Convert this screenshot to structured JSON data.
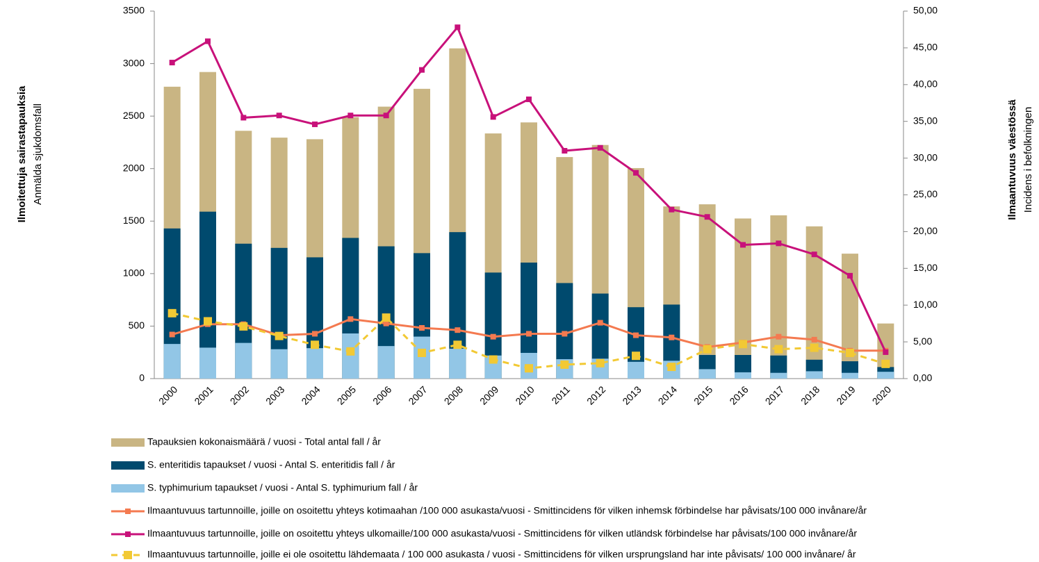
{
  "chart_data": {
    "type": "bar",
    "y_label": [
      "Ilmoitettuja sairastapauksia",
      "Anmälda sjukdomsfall"
    ],
    "y2_label": [
      "Ilmaantuvuus väestössä",
      "Incidens i befolkningen"
    ],
    "categories": [
      "2000",
      "2001",
      "2002",
      "2003",
      "2004",
      "2005",
      "2006",
      "2007",
      "2008",
      "2009",
      "2010",
      "2011",
      "2012",
      "2013",
      "2014",
      "2015",
      "2016",
      "2017",
      "2018",
      "2019",
      "2020"
    ],
    "ylim": [
      0,
      3500
    ],
    "yticks": [
      0,
      500,
      1000,
      1500,
      2000,
      2500,
      3000,
      3500
    ],
    "y2lim": [
      0,
      50
    ],
    "y2ticks": [
      {
        "value": 0,
        "label": "0,00"
      },
      {
        "value": 5,
        "label": "5,00"
      },
      {
        "value": 10,
        "label": "10,00"
      },
      {
        "value": 15,
        "label": "15,00"
      },
      {
        "value": 20,
        "label": "20,00"
      },
      {
        "value": 25,
        "label": "25,00"
      },
      {
        "value": 30,
        "label": "30,00"
      },
      {
        "value": 35,
        "label": "35,00"
      },
      {
        "value": 40,
        "label": "40,00"
      },
      {
        "value": 45,
        "label": "45,00"
      },
      {
        "value": 50,
        "label": "50,00"
      }
    ],
    "grid": false,
    "series": [
      {
        "name": "Tapauksien kokonaismäärä / vuosi - Total antal fall / år",
        "type": "bar",
        "color": "#c9b583",
        "values": [
          2780,
          2920,
          2360,
          2295,
          2280,
          2490,
          2590,
          2760,
          3145,
          2335,
          2440,
          2110,
          2225,
          2005,
          1640,
          1660,
          1525,
          1555,
          1450,
          1190,
          525
        ]
      },
      {
        "name": "S. enteritidis tapaukset / vuosi - Antal S. enteritidis fall / år",
        "type": "bar",
        "color": "#004a6e",
        "values": [
          1430,
          1590,
          1285,
          1245,
          1155,
          1340,
          1260,
          1195,
          1395,
          1010,
          1105,
          910,
          810,
          680,
          705,
          225,
          225,
          220,
          180,
          165,
          110
        ]
      },
      {
        "name": "S. typhimurium tapaukset / vuosi - Antal S. typhimurium fall / år",
        "type": "bar",
        "color": "#92c6e6",
        "values": [
          330,
          295,
          340,
          280,
          290,
          430,
          310,
          400,
          285,
          220,
          245,
          185,
          190,
          160,
          170,
          90,
          60,
          55,
          70,
          55,
          65
        ]
      },
      {
        "name": "Ilmaantuvuus tartunnoille, joille on osoitettu yhteys kotimaahan /100 000 asukasta/vuosi - Smittincidens för vilken inhemsk förbindelse har påvisats/100 000 invånare/år",
        "type": "line",
        "axis": "y2",
        "color": "#f47a50",
        "values": [
          6.0,
          7.4,
          7.4,
          5.9,
          6.1,
          8.1,
          7.5,
          6.9,
          6.6,
          5.7,
          6.1,
          6.1,
          7.6,
          5.9,
          5.6,
          4.3,
          4.9,
          5.7,
          5.3,
          3.8,
          3.8
        ]
      },
      {
        "name": "Ilmaantuvuus tartunnoille, joille on osoitettu yhteys ulkomaille/100 000 asukasta/vuosi - Smittincidens för vilken utländsk förbindelse har påvisats/100 000 invånare/år",
        "type": "line",
        "axis": "y2",
        "color": "#c8117a",
        "values": [
          43.0,
          45.9,
          35.5,
          35.8,
          34.6,
          35.8,
          35.8,
          42.0,
          47.8,
          35.6,
          38.0,
          31.0,
          31.4,
          28.0,
          23.0,
          22.0,
          18.2,
          18.4,
          16.9,
          14.0,
          3.6
        ]
      },
      {
        "name": "Ilmaantuvuus tartunnoille, joille ei ole osoitettu lähdemaata / 100 000 asukasta / vuosi - Smittincidens för vilken ursprungsland har inte påvisats/ 100 000 invånare/ år",
        "type": "line",
        "axis": "y2",
        "color": "#f2c934",
        "dashed": true,
        "values": [
          8.9,
          7.8,
          7.1,
          5.8,
          4.6,
          3.7,
          8.3,
          3.5,
          4.6,
          2.6,
          1.4,
          1.9,
          2.1,
          3.1,
          1.6,
          4.0,
          4.7,
          4.0,
          4.2,
          3.5,
          2.0
        ]
      }
    ]
  }
}
